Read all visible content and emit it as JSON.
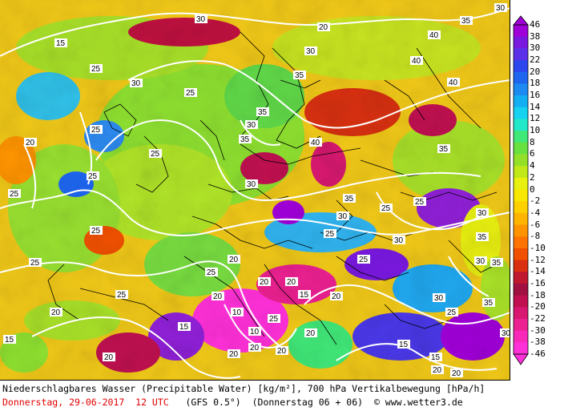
{
  "footer": {
    "line1": "Niederschlagbares Wasser (Precipitable Water) [kg/m²], 700 hPa Vertikalbewegung [hPa/h]",
    "date": "Donnerstag, 29-06-2017  12 UTC",
    "model": "(GFS 0.5°)",
    "run": "(Donnerstag 06 + 06)",
    "copyright": "© www.wetter3.de"
  },
  "colorbar": {
    "labels": [
      "46",
      "38",
      "30",
      "22",
      "20",
      "18",
      "16",
      "14",
      "12",
      "10",
      "8",
      "6",
      "4",
      "2",
      "0",
      "-2",
      "-4",
      "-6",
      "-8",
      "-10",
      "-12",
      "-14",
      "-16",
      "-18",
      "-20",
      "-22",
      "-30",
      "-38",
      "-46"
    ],
    "colors": [
      "#a000d8",
      "#7a18e0",
      "#5a30e8",
      "#2c46ee",
      "#1e66f0",
      "#1c8af0",
      "#14aef2",
      "#16d2f0",
      "#20e8c8",
      "#40e878",
      "#68e040",
      "#94e028",
      "#c0e818",
      "#e8f010",
      "#f8e800",
      "#ffd000",
      "#ffb400",
      "#ff9400",
      "#ff7400",
      "#f05000",
      "#d83010",
      "#c01830",
      "#a01040",
      "#c01050",
      "#d81870",
      "#ec2090",
      "#f828b8",
      "#ff30d8"
    ]
  },
  "contour_labels": [
    "15",
    "20",
    "25",
    "30",
    "35",
    "40"
  ],
  "colors": {
    "contour": "#ffffff",
    "borders": "#000000",
    "date_text": "#e00000"
  }
}
